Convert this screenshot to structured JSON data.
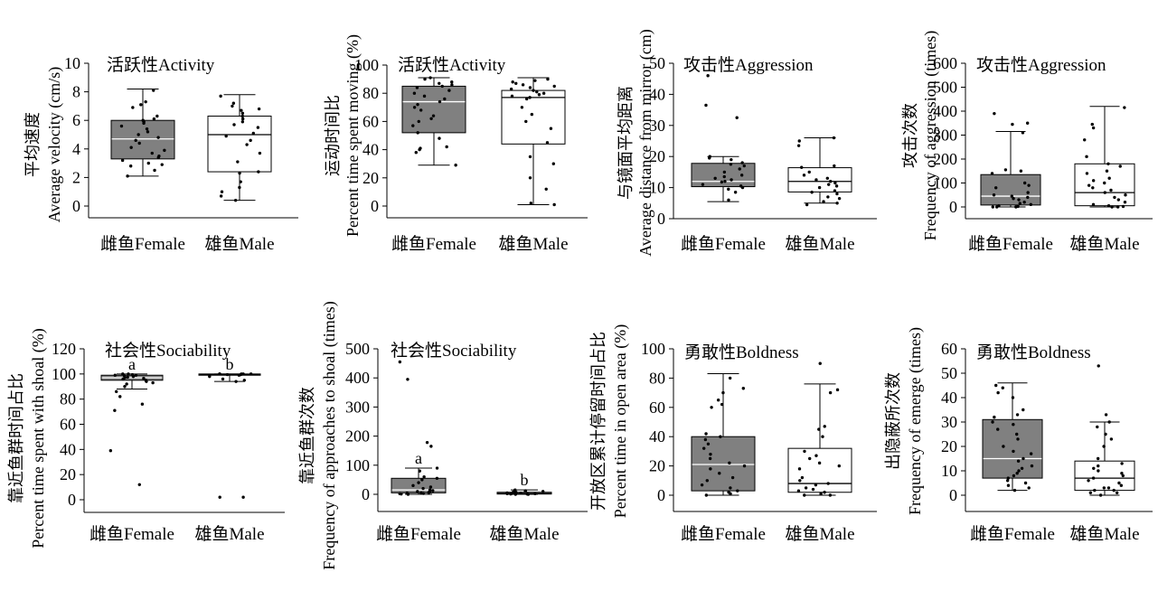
{
  "colors": {
    "box_fill_female": "#808080",
    "box_fill_male": "#ffffff",
    "median_female": "#ffffff",
    "median_male": "#000000",
    "point": "#000000",
    "axis": "#000000"
  },
  "chart_data": [
    {
      "type": "box",
      "title": "活跃性Activity",
      "ylabel": [
        "平均速度",
        "Average velocity (cm/s)"
      ],
      "categories": [
        "雌鱼Female",
        "雄鱼Male"
      ],
      "ylim": [
        0,
        10
      ],
      "yticks": [
        0,
        2,
        4,
        6,
        8,
        10
      ],
      "grid": false,
      "groups": [
        {
          "whisker_low": 2.1,
          "q1": 3.3,
          "median": 4.7,
          "q3": 6.0,
          "whisker_high": 8.2,
          "points": [
            8.1,
            7.3,
            7.1,
            6.9,
            6.3,
            6.1,
            6.0,
            5.9,
            5.8,
            5.6,
            5.4,
            5.2,
            5.0,
            4.8,
            4.6,
            4.4,
            4.1,
            3.9,
            3.7,
            3.5,
            3.4,
            3.2,
            3.0,
            2.9,
            2.8,
            2.5,
            2.1
          ]
        },
        {
          "whisker_low": 0.4,
          "q1": 2.4,
          "median": 5.0,
          "q3": 6.3,
          "whisker_high": 7.8,
          "points": [
            7.7,
            7.2,
            7.0,
            6.8,
            6.7,
            6.5,
            6.3,
            6.1,
            5.9,
            5.7,
            5.5,
            5.1,
            4.9,
            4.6,
            4.3,
            3.7,
            3.1,
            2.4,
            2.3,
            1.7,
            1.3,
            1.0,
            0.7,
            0.4
          ]
        }
      ]
    },
    {
      "type": "box",
      "title": "活跃性Activity",
      "ylabel": [
        "运动时间比",
        "Percent time spent moving (%)"
      ],
      "categories": [
        "雌鱼Female",
        "雄鱼Male"
      ],
      "ylim": [
        0,
        100
      ],
      "yticks": [
        0,
        20,
        40,
        60,
        80,
        100
      ],
      "grid": false,
      "groups": [
        {
          "whisker_low": 29,
          "q1": 52,
          "median": 74,
          "q3": 85,
          "whisker_high": 91,
          "points": [
            91,
            90,
            88,
            87,
            86,
            85,
            84,
            82,
            80,
            78,
            76,
            74,
            72,
            70,
            68,
            64,
            62,
            60,
            57,
            52,
            48,
            42,
            41,
            40,
            38,
            29
          ]
        },
        {
          "whisker_low": 1,
          "q1": 44,
          "median": 77,
          "q3": 82,
          "whisker_high": 91,
          "points": [
            90,
            89,
            88,
            87,
            86,
            85,
            84,
            83,
            82,
            81,
            80,
            79,
            78,
            77,
            76,
            70,
            65,
            60,
            55,
            45,
            35,
            30,
            20,
            12,
            2,
            1
          ]
        }
      ]
    },
    {
      "type": "box",
      "title": "攻击性Aggression",
      "ylabel": [
        "与镜面平均距离",
        "Average distance from mirror (cm)"
      ],
      "categories": [
        "雌鱼Female",
        "雄鱼Male"
      ],
      "ylim": [
        0,
        50
      ],
      "yticks": [
        0,
        10,
        20,
        30,
        40,
        50
      ],
      "grid": false,
      "groups": [
        {
          "whisker_low": 5.5,
          "q1": 10.3,
          "median": 12,
          "q3": 17.8,
          "whisker_high": 20,
          "points": [
            46,
            36.5,
            32.5,
            20,
            19.5,
            19,
            18,
            17.5,
            17,
            16,
            15,
            14,
            13.5,
            13,
            12.5,
            12,
            11.8,
            11,
            10.5,
            10,
            9.5,
            8.5,
            6
          ]
        },
        {
          "whisker_low": 5,
          "q1": 8.6,
          "median": 12,
          "q3": 16.4,
          "whisker_high": 26,
          "points": [
            26,
            25,
            23.5,
            17,
            16.5,
            15,
            14,
            13,
            12.5,
            12,
            11.5,
            11,
            10.5,
            10,
            9,
            8.5,
            8,
            7,
            6.5,
            5.5,
            5,
            4.5
          ]
        }
      ]
    },
    {
      "type": "box",
      "title": "攻击性Aggression",
      "ylabel": [
        "攻击次数",
        "Frequency of aggression (times)"
      ],
      "categories": [
        "雌鱼Female",
        "雄鱼Male"
      ],
      "ylim": [
        0,
        600
      ],
      "yticks": [
        0,
        100,
        200,
        300,
        400,
        500,
        600
      ],
      "grid": false,
      "groups": [
        {
          "whisker_low": 0,
          "q1": 8,
          "median": 45,
          "q3": 135,
          "whisker_high": 315,
          "points": [
            390,
            350,
            345,
            310,
            155,
            150,
            140,
            100,
            90,
            80,
            60,
            50,
            45,
            40,
            35,
            30,
            20,
            15,
            10,
            5,
            2,
            0,
            0,
            0
          ]
        },
        {
          "whisker_low": 0,
          "q1": 5,
          "median": 60,
          "q3": 180,
          "whisker_high": 420,
          "points": [
            415,
            345,
            330,
            280,
            210,
            180,
            170,
            150,
            140,
            120,
            110,
            100,
            90,
            80,
            70,
            60,
            50,
            40,
            30,
            20,
            10,
            5,
            2,
            0,
            0
          ]
        }
      ]
    },
    {
      "type": "box",
      "title": "社会性Sociability",
      "ylabel": [
        "靠近鱼群时间占比",
        "Percent time spent with shoal (%)"
      ],
      "categories": [
        "雌鱼Female",
        "雄鱼Male"
      ],
      "ylim": [
        0,
        120
      ],
      "yticks": [
        0,
        20,
        40,
        60,
        80,
        100,
        120
      ],
      "grid": false,
      "letters": [
        "a",
        "b"
      ],
      "groups": [
        {
          "whisker_low": 88,
          "q1": 95,
          "median": 97,
          "q3": 99,
          "whisker_high": 100,
          "points": [
            100,
            100,
            99.5,
            99,
            99,
            98.5,
            98,
            97.5,
            97,
            96.5,
            96,
            95,
            94,
            93,
            92,
            90,
            86,
            82,
            76,
            71,
            39,
            12
          ]
        },
        {
          "whisker_low": 94,
          "q1": 99,
          "median": 99.5,
          "q3": 100,
          "whisker_high": 100,
          "points": [
            100,
            100,
            100,
            100,
            100,
            99.5,
            99.5,
            99,
            98,
            96,
            95,
            94,
            2,
            2
          ]
        }
      ]
    },
    {
      "type": "box",
      "title": "社会性Sociability",
      "ylabel": [
        "靠近鱼群次数",
        "Frequency of approaches to shoal (times)"
      ],
      "categories": [
        "雌鱼Female",
        "雄鱼Male"
      ],
      "ylim": [
        0,
        500
      ],
      "yticks": [
        0,
        100,
        200,
        300,
        400,
        500
      ],
      "grid": false,
      "letters": [
        "a",
        "b"
      ],
      "groups": [
        {
          "whisker_low": 0,
          "q1": 5,
          "median": 15,
          "q3": 55,
          "whisker_high": 90,
          "points": [
            455,
            395,
            178,
            165,
            90,
            80,
            60,
            55,
            50,
            40,
            30,
            25,
            20,
            15,
            12,
            10,
            8,
            6,
            5,
            4,
            3,
            2,
            1,
            0
          ]
        },
        {
          "whisker_low": 0,
          "q1": 1,
          "median": 3,
          "q3": 7,
          "whisker_high": 15,
          "points": [
            15,
            12,
            10,
            8,
            7,
            6,
            5,
            4,
            3,
            3,
            2,
            2,
            1,
            1,
            0,
            0
          ]
        }
      ]
    },
    {
      "type": "box",
      "title": "勇敢性Boldness",
      "ylabel": [
        "开放区累计停留时间占比",
        "Percent time in open area (%)"
      ],
      "categories": [
        "雌鱼Female",
        "雄鱼Male"
      ],
      "ylim": [
        0,
        100
      ],
      "yticks": [
        0,
        20,
        40,
        60,
        80,
        100
      ],
      "grid": false,
      "groups": [
        {
          "whisker_low": 0,
          "q1": 3,
          "median": 21,
          "q3": 40,
          "whisker_high": 83,
          "points": [
            80,
            73,
            70,
            65,
            62,
            60,
            42,
            40,
            38,
            35,
            32,
            28,
            25,
            22,
            20,
            18,
            15,
            12,
            10,
            7,
            5,
            3,
            2,
            1,
            0
          ]
        },
        {
          "whisker_low": 0,
          "q1": 2,
          "median": 8,
          "q3": 32,
          "whisker_high": 76,
          "points": [
            90,
            72,
            70,
            47,
            45,
            40,
            30,
            27,
            25,
            22,
            20,
            18,
            12,
            10,
            8,
            7,
            5,
            4,
            3,
            2,
            1,
            0,
            0
          ]
        }
      ]
    },
    {
      "type": "box",
      "title": "勇敢性Boldness",
      "ylabel": [
        "出隐蔽所次数",
        "Frequency of emerge (times)"
      ],
      "categories": [
        "雌鱼Female",
        "雄鱼Male"
      ],
      "ylim": [
        0,
        60
      ],
      "yticks": [
        0,
        10,
        20,
        30,
        40,
        50,
        60
      ],
      "grid": false,
      "groups": [
        {
          "whisker_low": 2,
          "q1": 7,
          "median": 15,
          "q3": 31,
          "whisker_high": 46,
          "points": [
            45,
            44,
            42,
            40,
            35,
            33,
            32,
            30,
            29,
            27,
            25,
            23,
            20,
            18,
            17,
            15,
            14,
            12,
            11,
            10,
            9,
            8,
            7,
            6,
            5,
            4,
            3,
            2
          ]
        },
        {
          "whisker_low": 0,
          "q1": 2,
          "median": 7,
          "q3": 14,
          "whisker_high": 30,
          "points": [
            53,
            33,
            30,
            28,
            25,
            23,
            20,
            15,
            13,
            12,
            11,
            10,
            9,
            8,
            7,
            6,
            5,
            4,
            3,
            3,
            2,
            2,
            1,
            1,
            0
          ]
        }
      ]
    }
  ]
}
